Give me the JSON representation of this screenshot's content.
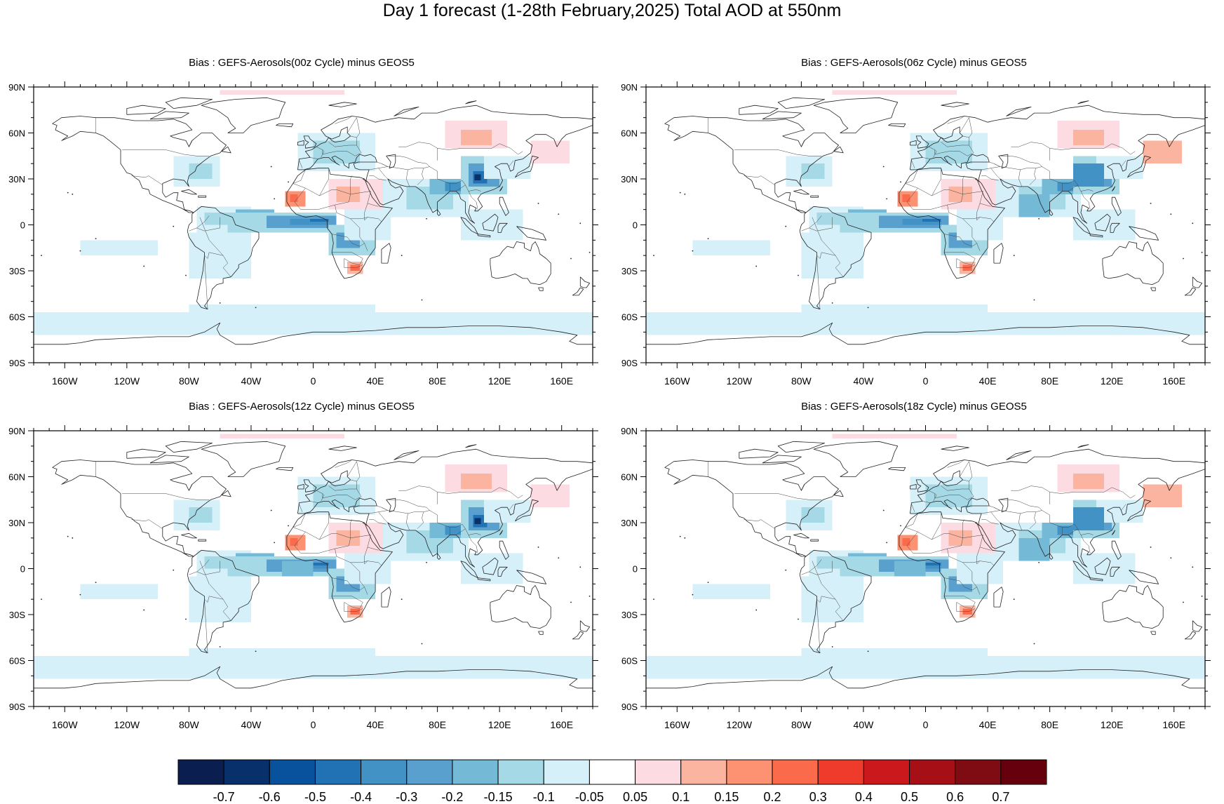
{
  "title": "Day 1 forecast (1-28th February,2025) Total AOD at 550nm",
  "panels": [
    {
      "title": "Bias : GEFS-Aerosols(00z Cycle) minus GEOS5",
      "variant": 0
    },
    {
      "title": "Bias : GEFS-Aerosols(06z Cycle) minus GEOS5",
      "variant": 1
    },
    {
      "title": "Bias : GEFS-Aerosols(12z Cycle) minus GEOS5",
      "variant": 2
    },
    {
      "title": "Bias : GEFS-Aerosols(18z Cycle) minus GEOS5",
      "variant": 3
    }
  ],
  "axes": {
    "lat_ticks": [
      {
        "value": 90,
        "label": "90N"
      },
      {
        "value": 60,
        "label": "60N"
      },
      {
        "value": 30,
        "label": "30N"
      },
      {
        "value": 0,
        "label": "0"
      },
      {
        "value": -30,
        "label": "30S"
      },
      {
        "value": -60,
        "label": "60S"
      },
      {
        "value": -90,
        "label": "90S"
      }
    ],
    "lon_ticks": [
      {
        "value": -160,
        "label": "160W"
      },
      {
        "value": -120,
        "label": "120W"
      },
      {
        "value": -80,
        "label": "80W"
      },
      {
        "value": -40,
        "label": "40W"
      },
      {
        "value": 0,
        "label": "0"
      },
      {
        "value": 40,
        "label": "40E"
      },
      {
        "value": 80,
        "label": "80E"
      },
      {
        "value": 120,
        "label": "120E"
      },
      {
        "value": 160,
        "label": "160E"
      }
    ],
    "lon_range": [
      -180,
      180
    ],
    "lat_range": [
      -90,
      90
    ]
  },
  "colorbar": {
    "colors": [
      "#0a1e4f",
      "#08306b",
      "#08519c",
      "#2171b5",
      "#4292c6",
      "#5aa0cf",
      "#74b9d6",
      "#a6d9e6",
      "#d6f0fa",
      "#ffffff",
      "#fddbe2",
      "#fbb4a0",
      "#fc9272",
      "#fb6a4a",
      "#ef3b2c",
      "#cb181d",
      "#a50f15",
      "#7f0c12",
      "#67000d"
    ],
    "labels": [
      "-0.7",
      "-0.6",
      "-0.5",
      "-0.4",
      "-0.3",
      "-0.2",
      "-0.15",
      "-0.1",
      "-0.05",
      "0.05",
      "0.1",
      "0.15",
      "0.2",
      "0.3",
      "0.4",
      "0.5",
      "0.6",
      "0.7"
    ]
  }
}
